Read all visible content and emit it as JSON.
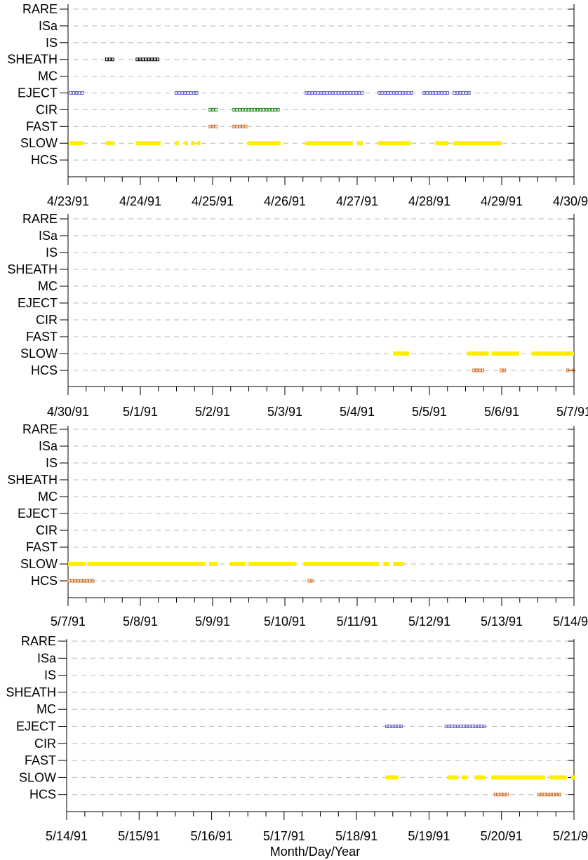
{
  "chart_data": {
    "type": "event-timeline",
    "xlabel": "Month/Day/Year",
    "categories": [
      "RARE",
      "ISa",
      "IS",
      "SHEATH",
      "MC",
      "EJECT",
      "CIR",
      "FAST",
      "SLOW",
      "HCS"
    ],
    "grid": true,
    "colors": {
      "SLOW": "#ffee00",
      "HCS": "#d2691e",
      "FAST": "#d2691e",
      "CIR": "#1a8a1a",
      "EJECT": "#6666cc",
      "SHEATH": "#000000"
    },
    "panels": [
      {
        "xlim": [
          0,
          7
        ],
        "ticks": [
          "4/23/91",
          "4/24/91",
          "4/25/91",
          "4/26/91",
          "4/27/91",
          "4/28/91",
          "4/29/91",
          "4/30/91"
        ],
        "intervals": [
          {
            "category": "SHEATH",
            "ranges": [
              [
                0.52,
                0.64
              ],
              [
                0.94,
                1.28
              ]
            ]
          },
          {
            "category": "EJECT",
            "ranges": [
              [
                0.02,
                0.22
              ],
              [
                1.48,
                1.82
              ],
              [
                3.28,
                4.08
              ],
              [
                4.29,
                4.78
              ],
              [
                4.91,
                5.26
              ],
              [
                5.33,
                5.56
              ]
            ]
          },
          {
            "category": "CIR",
            "ranges": [
              [
                1.95,
                2.07
              ],
              [
                2.28,
                2.94
              ]
            ]
          },
          {
            "category": "FAST",
            "ranges": [
              [
                1.95,
                2.07
              ],
              [
                2.28,
                2.5
              ]
            ]
          },
          {
            "category": "SLOW",
            "ranges": [
              [
                0.02,
                0.22
              ],
              [
                0.52,
                0.64
              ],
              [
                0.94,
                1.28
              ],
              [
                1.48,
                1.54
              ],
              [
                1.61,
                1.66
              ],
              [
                1.7,
                1.75
              ],
              [
                1.78,
                1.83
              ],
              [
                2.48,
                2.94
              ],
              [
                3.28,
                3.94
              ],
              [
                4.0,
                4.08
              ],
              [
                4.29,
                4.74
              ],
              [
                5.08,
                5.26
              ],
              [
                5.33,
                6.0
              ]
            ]
          }
        ]
      },
      {
        "xlim": [
          0,
          7
        ],
        "ticks": [
          "4/30/91",
          "5/1/91",
          "5/2/91",
          "5/3/91",
          "5/4/91",
          "5/5/91",
          "5/6/91",
          "5/7/91"
        ],
        "intervals": [
          {
            "category": "SLOW",
            "ranges": [
              [
                4.5,
                4.72
              ],
              [
                5.52,
                5.82
              ],
              [
                5.86,
                6.24
              ],
              [
                6.42,
                7.0
              ]
            ]
          },
          {
            "category": "HCS",
            "ranges": [
              [
                5.6,
                5.76
              ],
              [
                5.98,
                6.06
              ],
              [
                6.9,
                6.94
              ],
              [
                6.98,
                7.15
              ]
            ]
          }
        ]
      },
      {
        "xlim": [
          0,
          7
        ],
        "ticks": [
          "5/7/91",
          "5/8/91",
          "5/9/91",
          "5/10/91",
          "5/11/91",
          "5/12/91",
          "5/13/91",
          "5/14/91"
        ],
        "intervals": [
          {
            "category": "SLOW",
            "ranges": [
              [
                0.0,
                0.24
              ],
              [
                0.27,
                1.9
              ],
              [
                1.95,
                2.07
              ],
              [
                2.24,
                2.46
              ],
              [
                2.5,
                3.16
              ],
              [
                3.26,
                4.3
              ],
              [
                4.36,
                4.45
              ],
              [
                4.5,
                4.65
              ]
            ]
          },
          {
            "category": "HCS",
            "ranges": [
              [
                0.0,
                0.36
              ],
              [
                3.32,
                3.42
              ]
            ]
          }
        ]
      },
      {
        "xlim": [
          0,
          7
        ],
        "ticks": [
          "5/14/91",
          "5/15/91",
          "5/16/91",
          "5/17/91",
          "5/18/91",
          "5/19/91",
          "5/20/91",
          "5/21/91"
        ],
        "intervals": [
          {
            "category": "EJECT",
            "ranges": [
              [
                4.4,
                4.64
              ],
              [
                5.22,
                5.78
              ]
            ]
          },
          {
            "category": "SLOW",
            "ranges": [
              [
                4.4,
                4.58
              ],
              [
                5.25,
                5.4
              ],
              [
                5.45,
                5.53
              ],
              [
                5.63,
                5.77
              ],
              [
                5.86,
                6.6
              ],
              [
                6.66,
                6.9
              ],
              [
                6.96,
                7.16
              ]
            ]
          },
          {
            "category": "HCS",
            "ranges": [
              [
                5.9,
                6.12
              ],
              [
                6.5,
                6.84
              ]
            ]
          }
        ]
      }
    ]
  }
}
